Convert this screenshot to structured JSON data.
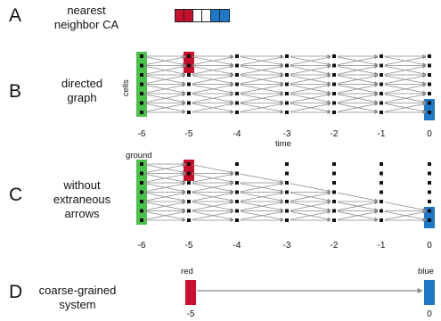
{
  "panels": [
    {
      "letter": "A",
      "caption_lines": [
        "nearest",
        "neighbor CA"
      ]
    },
    {
      "letter": "B",
      "caption_lines": [
        "directed",
        "graph"
      ],
      "y_label": "cells",
      "x_label": "time",
      "ticks": [
        "-6",
        "-5",
        "-4",
        "-3",
        "-2",
        "-1",
        "0"
      ]
    },
    {
      "letter": "C",
      "caption_lines": [
        "without",
        "extraneous",
        "arrows"
      ],
      "top_label": "ground",
      "ticks": [
        "-6",
        "-5",
        "-4",
        "-3",
        "-2",
        "-1",
        "0"
      ]
    },
    {
      "letter": "D",
      "caption_lines": [
        "coarse-grained",
        "system"
      ],
      "left_label": "red",
      "right_label": "blue",
      "left_tick": "-5",
      "right_tick": "0"
    }
  ],
  "strip_colors": [
    "#c8102e",
    "#c8102e",
    "#ffffff",
    "#ffffff",
    "#1f77c8",
    "#1f77c8"
  ],
  "colors": {
    "red": "#c8102e",
    "blue": "#1f77c8",
    "green": "#4bc24b",
    "arrow": "#8a8a8a",
    "node": "#111111"
  }
}
